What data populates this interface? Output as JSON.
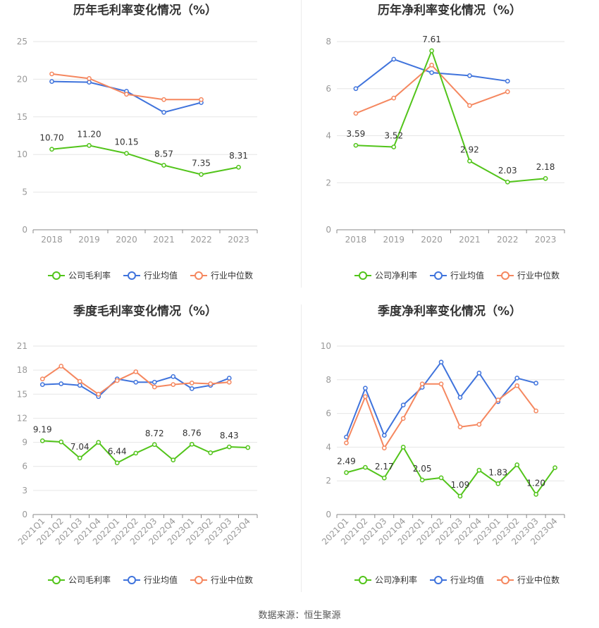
{
  "colors": {
    "company": "#52c41a",
    "avg": "#3f73dc",
    "median": "#f5875f",
    "grid": "#e6e6e6",
    "axis": "#999999",
    "title": "#333333"
  },
  "source": {
    "label": "数据来源：",
    "name": "恒生聚源"
  },
  "chart_data": [
    {
      "type": "line",
      "title": "历年毛利率变化情况（%）",
      "categories": [
        "2018",
        "2019",
        "2020",
        "2021",
        "2022",
        "2023"
      ],
      "ylim": [
        0,
        25
      ],
      "yticks": [
        0,
        5,
        10,
        15,
        20,
        25
      ],
      "grid": true,
      "legend": "bottom",
      "series": [
        {
          "name": "公司毛利率",
          "key": "company",
          "values": [
            10.7,
            11.2,
            10.15,
            8.57,
            7.35,
            8.31
          ],
          "labels": [
            "10.70",
            "11.20",
            "10.15",
            "8.57",
            "7.35",
            "8.31"
          ],
          "labelIdx": [
            0,
            1,
            2,
            3,
            4,
            5
          ]
        },
        {
          "name": "行业均值",
          "key": "avg",
          "values": [
            19.7,
            19.6,
            18.4,
            15.6,
            16.9,
            null
          ]
        },
        {
          "name": "行业中位数",
          "key": "median",
          "values": [
            20.7,
            20.1,
            18.0,
            17.3,
            17.3,
            null
          ]
        }
      ]
    },
    {
      "type": "line",
      "title": "历年净利率变化情况（%）",
      "categories": [
        "2018",
        "2019",
        "2020",
        "2021",
        "2022",
        "2023"
      ],
      "ylim": [
        0,
        8
      ],
      "yticks": [
        0,
        2,
        4,
        6,
        8
      ],
      "grid": true,
      "legend": "bottom",
      "series": [
        {
          "name": "公司净利率",
          "key": "company",
          "values": [
            3.59,
            3.52,
            7.61,
            2.92,
            2.03,
            2.18
          ],
          "labels": [
            "3.59",
            "3.52",
            "7.61",
            "2.92",
            "2.03",
            "2.18"
          ],
          "labelIdx": [
            0,
            1,
            2,
            3,
            4,
            5
          ]
        },
        {
          "name": "行业均值",
          "key": "avg",
          "values": [
            6.0,
            7.25,
            6.68,
            6.55,
            6.32,
            null
          ]
        },
        {
          "name": "行业中位数",
          "key": "median",
          "values": [
            4.95,
            5.6,
            7.0,
            5.28,
            5.87,
            null
          ]
        }
      ]
    },
    {
      "type": "line",
      "title": "季度毛利率变化情况（%）",
      "categories": [
        "2021Q1",
        "2021Q2",
        "2021Q3",
        "2021Q4",
        "2022Q1",
        "2022Q2",
        "2022Q3",
        "2022Q4",
        "2023Q1",
        "2023Q2",
        "2023Q3",
        "2023Q4"
      ],
      "ylim": [
        0,
        21
      ],
      "yticks": [
        0,
        3,
        6,
        9,
        12,
        15,
        18,
        21
      ],
      "grid": true,
      "legend": "bottom",
      "series": [
        {
          "name": "公司毛利率",
          "key": "company",
          "values": [
            9.19,
            9.05,
            7.04,
            9.0,
            6.44,
            7.65,
            8.72,
            6.8,
            8.76,
            7.7,
            8.43,
            8.35
          ],
          "labels": [
            "9.19",
            "7.04",
            "6.44",
            "8.72",
            "8.76",
            "8.43"
          ],
          "labelIdx": [
            0,
            2,
            4,
            6,
            8,
            10
          ]
        },
        {
          "name": "行业均值",
          "key": "avg",
          "values": [
            16.2,
            16.3,
            16.1,
            14.7,
            16.9,
            16.5,
            16.5,
            17.2,
            15.7,
            16.1,
            17.0,
            null
          ]
        },
        {
          "name": "行业中位数",
          "key": "median",
          "values": [
            16.9,
            18.5,
            16.6,
            15.0,
            16.7,
            17.8,
            15.9,
            16.2,
            16.4,
            16.3,
            16.5,
            null
          ]
        }
      ]
    },
    {
      "type": "line",
      "title": "季度净利率变化情况（%）",
      "categories": [
        "2021Q1",
        "2021Q2",
        "2021Q3",
        "2021Q4",
        "2022Q1",
        "2022Q2",
        "2022Q3",
        "2022Q4",
        "2023Q1",
        "2023Q2",
        "2023Q3",
        "2023Q4"
      ],
      "ylim": [
        0,
        10
      ],
      "yticks": [
        0,
        2,
        4,
        6,
        8,
        10
      ],
      "grid": true,
      "legend": "bottom",
      "series": [
        {
          "name": "公司净利率",
          "key": "company",
          "values": [
            2.49,
            2.8,
            2.17,
            4.0,
            2.05,
            2.18,
            1.09,
            2.63,
            1.83,
            2.95,
            1.2,
            2.78
          ],
          "labels": [
            "2.49",
            "2.17",
            "2.05",
            "1.09",
            "1.83",
            "1.20"
          ],
          "labelIdx": [
            0,
            2,
            4,
            6,
            8,
            10
          ]
        },
        {
          "name": "行业均值",
          "key": "avg",
          "values": [
            4.6,
            7.5,
            4.7,
            6.5,
            7.55,
            9.05,
            6.95,
            8.4,
            6.7,
            8.1,
            7.8,
            null
          ]
        },
        {
          "name": "行业中位数",
          "key": "median",
          "values": [
            4.25,
            7.0,
            3.95,
            5.7,
            7.75,
            7.75,
            5.2,
            5.35,
            6.8,
            7.65,
            6.15,
            null
          ]
        }
      ]
    }
  ]
}
